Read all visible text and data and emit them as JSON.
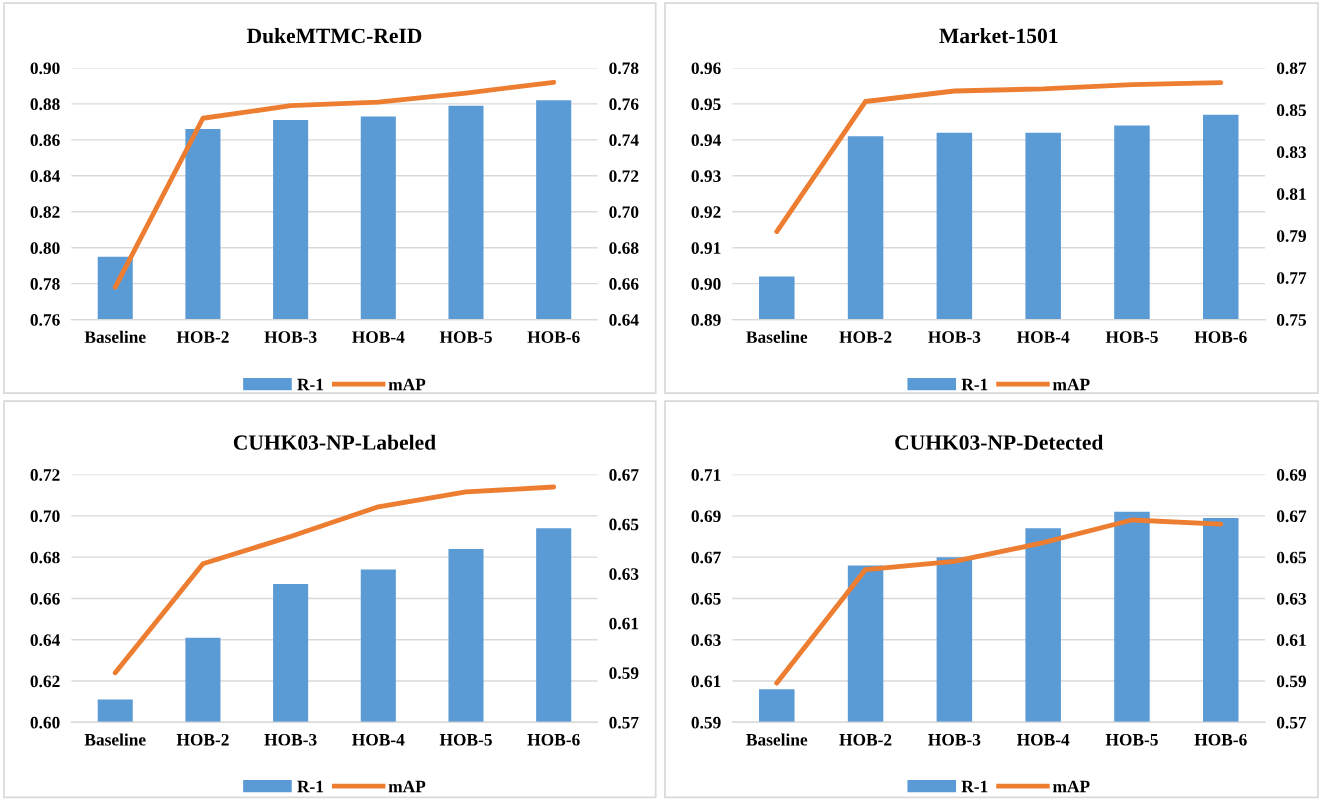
{
  "chart_data": [
    {
      "type": "bar",
      "title": "DukeMTMC-ReID",
      "categories": [
        "Baseline",
        "HOB-2",
        "HOB-3",
        "HOB-4",
        "HOB-5",
        "HOB-6"
      ],
      "series": [
        {
          "name": "R-1",
          "color": "#5b9bd5",
          "values": [
            0.795,
            0.866,
            0.871,
            0.873,
            0.879,
            0.882
          ]
        },
        {
          "name": "mAP",
          "type": "line",
          "axis": "y2",
          "color": "#ed7d31",
          "values": [
            0.658,
            0.752,
            0.759,
            0.761,
            0.766,
            0.772
          ]
        }
      ],
      "ylim": [
        0.76,
        0.9
      ],
      "yticks": [
        0.76,
        0.78,
        {
          "value": 0.8,
          "label": "0.80"
        },
        0.82,
        0.84,
        0.86,
        0.88,
        {
          "value": 0.9,
          "label": "0.90"
        }
      ],
      "y2lim": [
        0.64,
        0.78
      ],
      "y2ticks": [
        0.64,
        0.66,
        0.68,
        {
          "value": 0.7,
          "label": "0.70"
        },
        0.72,
        0.74,
        0.76,
        0.78
      ],
      "grid": "y",
      "legend": "bottom",
      "marker": "none",
      "line_style": "solid"
    },
    {
      "type": "bar",
      "title": "Market-1501",
      "categories": [
        "Baseline",
        "HOB-2",
        "HOB-3",
        "HOB-4",
        "HOB-5",
        "HOB-6"
      ],
      "series": [
        {
          "name": "R-1",
          "color": "#5b9bd5",
          "values": [
            0.902,
            0.941,
            0.942,
            0.942,
            0.944,
            0.947
          ]
        },
        {
          "name": "mAP",
          "type": "line",
          "axis": "y2",
          "color": "#ed7d31",
          "values": [
            0.792,
            0.854,
            0.859,
            0.86,
            0.862,
            0.863
          ]
        }
      ],
      "ylim": [
        0.89,
        0.96
      ],
      "yticks": [
        0.89,
        {
          "value": 0.9,
          "label": "0.90"
        },
        0.91,
        0.92,
        0.93,
        0.94,
        0.95,
        0.96
      ],
      "y2lim": [
        0.75,
        0.87
      ],
      "y2ticks": [
        0.75,
        0.77,
        0.79,
        0.81,
        0.83,
        0.85,
        0.87
      ],
      "grid": "y",
      "legend": "bottom",
      "marker": "none",
      "line_style": "solid"
    },
    {
      "type": "bar",
      "title": "CUHK03-NP-Labeled",
      "categories": [
        "Baseline",
        "HOB-2",
        "HOB-3",
        "HOB-4",
        "HOB-5",
        "HOB-6"
      ],
      "series": [
        {
          "name": "R-1",
          "color": "#5b9bd5",
          "values": [
            0.611,
            0.641,
            0.667,
            0.674,
            0.684,
            0.694
          ]
        },
        {
          "name": "mAP",
          "type": "line",
          "axis": "y2",
          "color": "#ed7d31",
          "values": [
            0.59,
            0.634,
            0.645,
            0.657,
            0.663,
            0.665
          ]
        }
      ],
      "ylim": [
        0.6,
        0.72
      ],
      "yticks": [
        {
          "value": 0.6,
          "label": "0.60"
        },
        0.62,
        0.64,
        0.66,
        0.68,
        {
          "value": 0.7,
          "label": "0.70"
        },
        0.72
      ],
      "y2lim": [
        0.57,
        0.67
      ],
      "y2ticks": [
        0.57,
        0.59,
        0.61,
        0.63,
        0.65,
        0.67
      ],
      "grid": "y",
      "legend": "bottom",
      "marker": "none",
      "line_style": "solid"
    },
    {
      "type": "bar",
      "title": "CUHK03-NP-Detected",
      "categories": [
        "Baseline",
        "HOB-2",
        "HOB-3",
        "HOB-4",
        "HOB-5",
        "HOB-6"
      ],
      "series": [
        {
          "name": "R-1",
          "color": "#5b9bd5",
          "values": [
            0.606,
            0.666,
            0.67,
            0.684,
            0.692,
            0.689
          ]
        },
        {
          "name": "mAP",
          "type": "line",
          "axis": "y2",
          "color": "#ed7d31",
          "values": [
            0.589,
            0.644,
            0.648,
            0.657,
            0.668,
            0.666
          ]
        }
      ],
      "ylim": [
        0.59,
        0.71
      ],
      "yticks": [
        0.59,
        0.61,
        0.63,
        0.65,
        0.67,
        0.69,
        0.71
      ],
      "y2lim": [
        0.57,
        0.69
      ],
      "y2ticks": [
        0.57,
        0.59,
        0.61,
        0.63,
        0.65,
        0.67,
        0.69
      ],
      "grid": "y",
      "legend": "bottom",
      "marker": "none",
      "line_style": "solid"
    }
  ]
}
